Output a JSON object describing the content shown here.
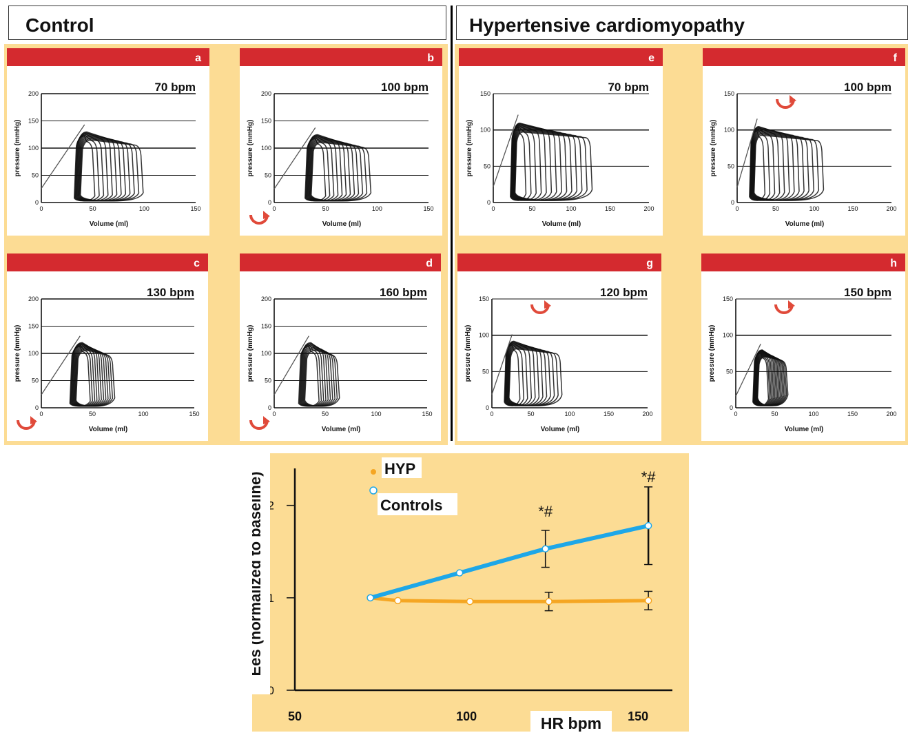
{
  "groups": [
    {
      "title": "Control"
    },
    {
      "title": "Hypertensive cardiomyopathy"
    }
  ],
  "pv_panels": [
    {
      "letter": "a",
      "hr": "70 bpm",
      "y_ticks": [
        "200",
        "150",
        "100",
        "50",
        "0"
      ],
      "x_ticks": [
        "0",
        "50",
        "100",
        "150"
      ],
      "ylabel": "pressure (mmHg)",
      "xlabel": "Volume (ml)",
      "rotate_icon": false
    },
    {
      "letter": "b",
      "hr": "100 bpm",
      "y_ticks": [
        "200",
        "150",
        "100",
        "50",
        "0"
      ],
      "x_ticks": [
        "0",
        "50",
        "100",
        "150"
      ],
      "ylabel": "pressure (mmHg)",
      "xlabel": "Volume (ml)",
      "rotate_icon": true
    },
    {
      "letter": "c",
      "hr": "130 bpm",
      "y_ticks": [
        "200",
        "150",
        "100",
        "50",
        "0"
      ],
      "x_ticks": [
        "0",
        "50",
        "100",
        "150"
      ],
      "ylabel": "pressure (mmHg)",
      "xlabel": "Volume (ml)",
      "rotate_icon": true
    },
    {
      "letter": "d",
      "hr": "160 bpm",
      "y_ticks": [
        "200",
        "150",
        "100",
        "50",
        "0"
      ],
      "x_ticks": [
        "0",
        "50",
        "100",
        "150"
      ],
      "ylabel": "pressure (mmHg)",
      "xlabel": "Volume (ml)",
      "rotate_icon": true
    },
    {
      "letter": "e",
      "hr": "70 bpm",
      "y_ticks": [
        "150",
        "100",
        "50",
        "0"
      ],
      "x_ticks": [
        "0",
        "50",
        "100",
        "150",
        "200"
      ],
      "ylabel": "pressure (mmHg)",
      "xlabel": "Volume (ml)",
      "rotate_icon": false
    },
    {
      "letter": "f",
      "hr": "100 bpm",
      "y_ticks": [
        "150",
        "100",
        "50",
        "0"
      ],
      "x_ticks": [
        "0",
        "50",
        "100",
        "150",
        "200"
      ],
      "ylabel": "pressure (mmHg)",
      "xlabel": "Volume (ml)",
      "rotate_icon": true
    },
    {
      "letter": "g",
      "hr": "120 bpm",
      "y_ticks": [
        "150",
        "100",
        "50",
        "0"
      ],
      "x_ticks": [
        "0",
        "50",
        "100",
        "150",
        "200"
      ],
      "ylabel": "pressure (mmHg)",
      "xlabel": "Volume (ml)",
      "rotate_icon": true
    },
    {
      "letter": "h",
      "hr": "150 bpm",
      "y_ticks": [
        "150",
        "100",
        "50",
        "0"
      ],
      "x_ticks": [
        "0",
        "50",
        "100",
        "150",
        "200"
      ],
      "ylabel": "pressure (mmHg)",
      "xlabel": "Volume (ml)",
      "rotate_icon": true
    }
  ],
  "chart_data": {
    "type": "line",
    "ylabel": "Ees (normalized to baseline)",
    "xlabel": "HR bpm",
    "xlim": [
      50,
      160
    ],
    "ylim": [
      0,
      2.4
    ],
    "x_ticks": [
      "50",
      "100",
      "150"
    ],
    "y_ticks": [
      "0",
      "1",
      "2"
    ],
    "series": [
      {
        "name": "HYP",
        "color": "#f5a623",
        "points": [
          {
            "x": 72,
            "y": 1.0
          },
          {
            "x": 80,
            "y": 0.97
          },
          {
            "x": 101,
            "y": 0.96
          },
          {
            "x": 124,
            "y": 0.96,
            "err": 0.1
          },
          {
            "x": 153,
            "y": 0.97,
            "err": 0.1
          }
        ]
      },
      {
        "name": "Controls",
        "color": "#1ea7e8",
        "points": [
          {
            "x": 72,
            "y": 1.0
          },
          {
            "x": 98,
            "y": 1.27
          },
          {
            "x": 123,
            "y": 1.53,
            "err": 0.2
          },
          {
            "x": 153,
            "y": 1.78,
            "err": 0.42
          }
        ]
      }
    ],
    "annotations": [
      {
        "text": "*#",
        "x": 123
      },
      {
        "text": "*#",
        "x": 153
      }
    ],
    "legend": [
      {
        "label": "HYP"
      },
      {
        "label": "Controls"
      }
    ]
  }
}
